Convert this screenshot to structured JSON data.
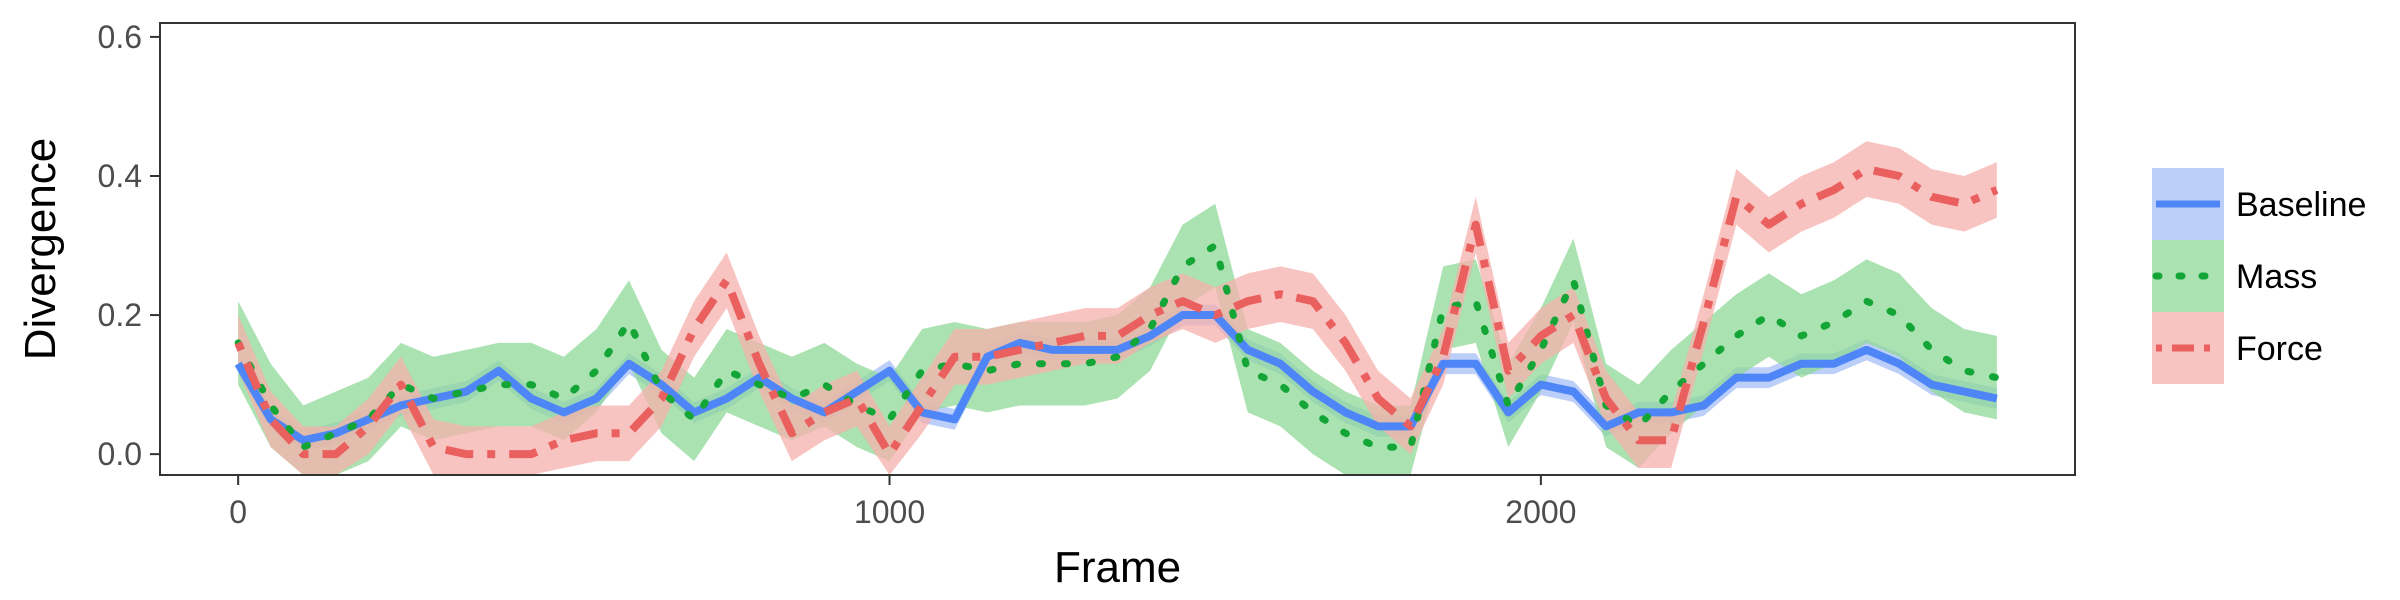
{
  "chart_data": {
    "type": "line",
    "xlabel": "Frame",
    "ylabel": "Divergence",
    "xlim": [
      -120,
      2820
    ],
    "ylim": [
      -0.03,
      0.62
    ],
    "x_ticks": [
      0,
      1000,
      2000
    ],
    "x_tick_labels": [
      "0",
      "1000",
      "2000"
    ],
    "y_ticks": [
      0.0,
      0.2,
      0.4,
      0.6
    ],
    "y_tick_labels": [
      "0.0",
      "0.2",
      "0.4",
      "0.6"
    ],
    "grid": false,
    "legend_position": "right",
    "x": [
      0,
      50,
      100,
      150,
      200,
      250,
      300,
      350,
      400,
      450,
      500,
      550,
      600,
      650,
      700,
      750,
      800,
      850,
      900,
      950,
      1000,
      1050,
      1100,
      1150,
      1200,
      1250,
      1300,
      1350,
      1400,
      1450,
      1500,
      1550,
      1600,
      1650,
      1700,
      1750,
      1800,
      1850,
      1900,
      1950,
      2000,
      2050,
      2100,
      2150,
      2200,
      2250,
      2300,
      2350,
      2400,
      2450,
      2500,
      2550,
      2600,
      2650,
      2700
    ],
    "series": [
      {
        "name": "Baseline",
        "color": "#4f86f7",
        "fill": "#a4bff7",
        "dash": "solid",
        "values": [
          0.13,
          0.05,
          0.02,
          0.03,
          0.05,
          0.07,
          0.08,
          0.09,
          0.12,
          0.08,
          0.06,
          0.08,
          0.13,
          0.1,
          0.06,
          0.08,
          0.11,
          0.08,
          0.06,
          0.09,
          0.12,
          0.06,
          0.05,
          0.14,
          0.16,
          0.15,
          0.15,
          0.15,
          0.17,
          0.2,
          0.2,
          0.15,
          0.13,
          0.09,
          0.06,
          0.04,
          0.04,
          0.13,
          0.13,
          0.06,
          0.1,
          0.09,
          0.04,
          0.06,
          0.06,
          0.07,
          0.11,
          0.11,
          0.13,
          0.13,
          0.15,
          0.13,
          0.1,
          0.09,
          0.08
        ],
        "band": 0.015
      },
      {
        "name": "Mass",
        "color": "#13a536",
        "fill": "#8fd897",
        "dash": "dotted",
        "values": [
          0.16,
          0.07,
          0.01,
          0.03,
          0.05,
          0.1,
          0.08,
          0.09,
          0.1,
          0.1,
          0.08,
          0.12,
          0.19,
          0.09,
          0.05,
          0.12,
          0.1,
          0.08,
          0.1,
          0.07,
          0.05,
          0.12,
          0.13,
          0.12,
          0.13,
          0.13,
          0.13,
          0.14,
          0.18,
          0.27,
          0.3,
          0.12,
          0.1,
          0.06,
          0.03,
          0.01,
          0.01,
          0.21,
          0.22,
          0.07,
          0.15,
          0.25,
          0.07,
          0.04,
          0.09,
          0.13,
          0.17,
          0.2,
          0.17,
          0.19,
          0.22,
          0.2,
          0.15,
          0.12,
          0.11
        ],
        "band": 0.06
      },
      {
        "name": "Force",
        "color": "#e9605e",
        "fill": "#f6b0ac",
        "dash": "dashdot",
        "values": [
          0.16,
          0.05,
          0.0,
          0.0,
          0.04,
          0.1,
          0.01,
          0.0,
          0.0,
          0.0,
          0.02,
          0.03,
          0.03,
          0.08,
          0.18,
          0.25,
          0.13,
          0.03,
          0.06,
          0.08,
          0.0,
          0.07,
          0.14,
          0.14,
          0.15,
          0.16,
          0.17,
          0.17,
          0.2,
          0.22,
          0.2,
          0.22,
          0.23,
          0.22,
          0.16,
          0.08,
          0.04,
          0.14,
          0.33,
          0.12,
          0.17,
          0.2,
          0.08,
          0.02,
          0.02,
          0.19,
          0.37,
          0.33,
          0.36,
          0.38,
          0.41,
          0.4,
          0.37,
          0.36,
          0.38
        ],
        "band": 0.04
      }
    ],
    "legend": [
      {
        "label": "Baseline",
        "icon": "solid-line-swatch"
      },
      {
        "label": "Mass",
        "icon": "dotted-line-swatch"
      },
      {
        "label": "Force",
        "icon": "dashdot-line-swatch"
      }
    ]
  }
}
